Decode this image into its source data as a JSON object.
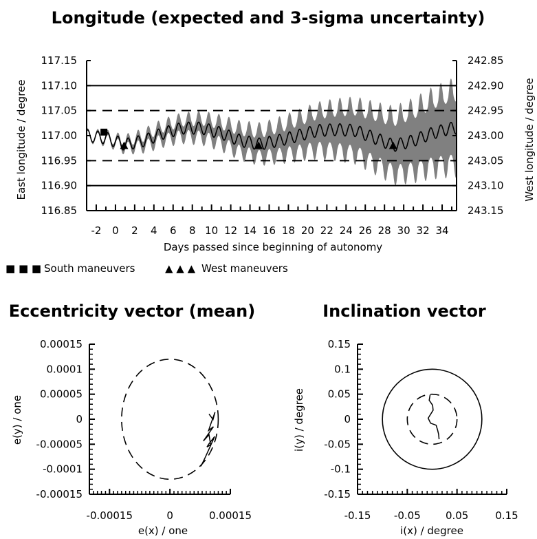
{
  "chart_data": [
    {
      "type": "line",
      "title": "Longitude (expected and 3-sigma uncertainty)",
      "xlabel": "Days passed since beginning of autonomy",
      "ylabel": "East longitude / degree",
      "ylabel_right": "West longitude / degree",
      "xlim": [
        -3,
        35.5
      ],
      "ylim": [
        116.85,
        117.15
      ],
      "x_ticks": [
        "-2",
        "0",
        "2",
        "4",
        "6",
        "8",
        "10",
        "12",
        "14",
        "16",
        "18",
        "20",
        "22",
        "24",
        "26",
        "28",
        "30",
        "32",
        "34"
      ],
      "y_ticks": [
        "116.85",
        "116.90",
        "116.95",
        "117.00",
        "117.05",
        "117.10",
        "117.15"
      ],
      "y_ticks_right": [
        "243.15",
        "243.10",
        "243.05",
        "243.00",
        "242.95",
        "242.90",
        "242.85"
      ],
      "limit_lines_solid": [
        116.9,
        117.1
      ],
      "limit_lines_dashed": [
        116.95,
        117.05
      ],
      "mean_curve": {
        "x": [
          -3,
          -1,
          1,
          3,
          5,
          7,
          9,
          11,
          13,
          15,
          17,
          19,
          21,
          23,
          25,
          27,
          29,
          31,
          33,
          35
        ],
        "y": [
          117.0,
          116.995,
          116.982,
          116.99,
          117.005,
          117.015,
          117.015,
          117.005,
          116.99,
          116.983,
          116.99,
          117.0,
          117.01,
          117.012,
          117.01,
          116.995,
          116.98,
          116.99,
          117.005,
          117.015
        ]
      },
      "uncertainty_halfwidth": {
        "x": [
          -3,
          0,
          4,
          8,
          12,
          16,
          20,
          24,
          28,
          31,
          35
        ],
        "y": [
          0.002,
          0.005,
          0.012,
          0.016,
          0.02,
          0.025,
          0.032,
          0.04,
          0.048,
          0.055,
          0.065
        ]
      },
      "oscillation_period_days": 1.05,
      "oscillation_amplitude": 0.012,
      "south_maneuvers": [
        {
          "x": -1.2,
          "y": 117.007
        }
      ],
      "west_maneuvers": [
        {
          "x": 0.9,
          "y": 116.98
        },
        {
          "x": 14.9,
          "y": 116.98
        },
        {
          "x": 28.9,
          "y": 116.98
        }
      ],
      "legend": [
        {
          "marker": "■ ■ ■",
          "label": "South maneuvers"
        },
        {
          "marker": "▲ ▲ ▲",
          "label": "West maneuvers"
        }
      ],
      "legend_position": "bottom-left"
    },
    {
      "type": "line",
      "title": "Eccentricity vector (mean)",
      "xlabel": "e(x) / one",
      "ylabel": "e(y) / one",
      "xlim": [
        -0.0002,
        0.00015
      ],
      "ylim": [
        -0.00015,
        0.00015
      ],
      "x_ticks": [
        "-0.00015",
        "0",
        "0.00015"
      ],
      "x_tick_values": [
        -0.00015,
        0,
        0.00015
      ],
      "y_ticks": [
        "-0.00015",
        "-0.0001",
        "-0.00005",
        "0",
        "0.00005",
        "0.0001",
        "0.00015"
      ],
      "circle_dashed": {
        "cx": 0,
        "cy": 0,
        "r": 0.00012
      },
      "trajectory": {
        "x": [
          9.7e-05,
          0.000107,
          0.000112,
          0.000101,
          9.6e-05,
          0.000108,
          8.3e-05,
          9.7e-05,
          0.000101,
          9.2e-05,
          9.7e-05,
          0.000111,
          0.0001,
          8.7e-05,
          7.7e-05
        ],
        "y": [
          1.05e-05,
          -5e-07,
          1.4e-05,
          -1.05e-05,
          -2.25e-05,
          -1.5e-05,
          -4.35e-05,
          -3.1e-05,
          -5.1e-05,
          -5.55e-05,
          -4.9e-05,
          -3.45e-05,
          -5.45e-05,
          -7.75e-05,
          -9.4e-05
        ]
      }
    },
    {
      "type": "line",
      "title": "Inclination vector",
      "xlabel": "i(x) / degree",
      "ylabel": "i(y) / degree",
      "xlim": [
        -0.15,
        0.15
      ],
      "ylim": [
        -0.15,
        0.15
      ],
      "x_ticks": [
        "-0.15",
        "-0.05",
        "0.05",
        "0.15"
      ],
      "x_tick_values": [
        -0.15,
        -0.05,
        0.05,
        0.15
      ],
      "y_ticks": [
        "-0.15",
        "-0.1",
        "-0.05",
        "0",
        "0.05",
        "0.1",
        "0.15"
      ],
      "circle_solid": {
        "cx": 0,
        "cy": 0,
        "r": 0.1
      },
      "circle_dashed": {
        "cx": 0,
        "cy": 0,
        "r": 0.05
      },
      "trajectory": {
        "x": [
          -0.004,
          -0.006,
          0.001,
          0.002,
          -0.008,
          -0.003,
          0.008,
          0.011,
          0.013,
          0.014
        ],
        "y": [
          0.049,
          0.038,
          0.028,
          0.018,
          0.002,
          -0.008,
          -0.012,
          -0.022,
          -0.03,
          -0.04
        ]
      }
    }
  ]
}
